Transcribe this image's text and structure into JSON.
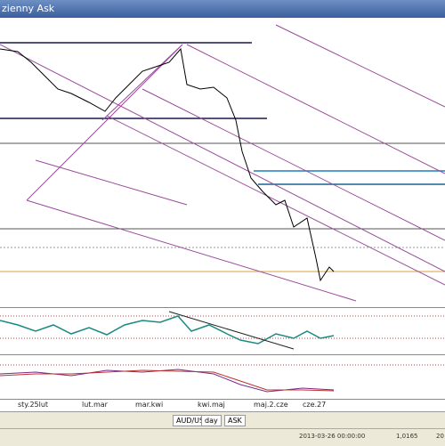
{
  "window": {
    "title": "zienny Ask"
  },
  "x_axis_labels": [
    "sty.25lut",
    "lut.mar",
    "mar.kwi",
    "kwi.maj",
    "maj.2.cze",
    "cze.27"
  ],
  "tabs": [
    "AUD/USD",
    "day",
    "ASK"
  ],
  "status": [
    "2013-03-26 00:00:00",
    "1,0165",
    "20"
  ]
}
